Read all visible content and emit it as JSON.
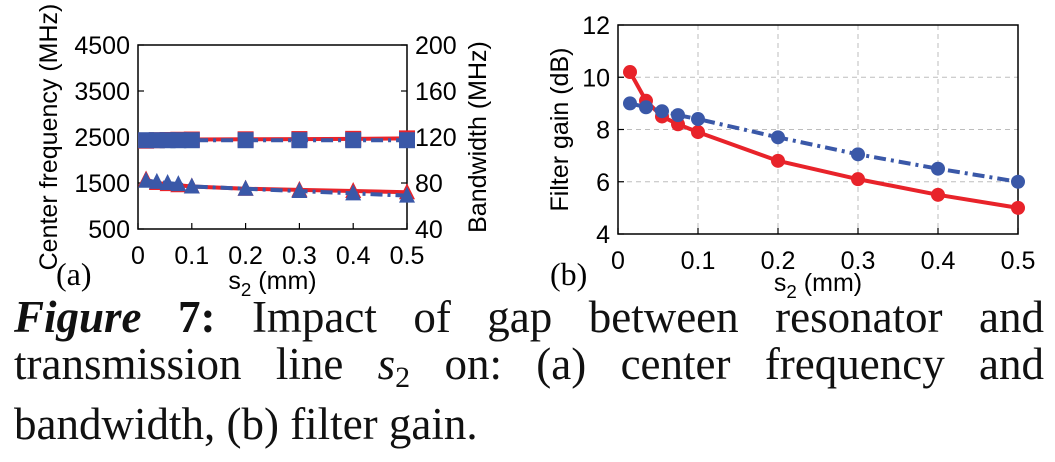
{
  "chart_data": [
    {
      "panel": "(a)",
      "type": "line",
      "xlabel_main": "s",
      "xlabel_sub": "2",
      "xlabel_unit": " (mm)",
      "xlim": [
        0,
        0.5
      ],
      "xticks": [
        "0",
        "0.1",
        "0.2",
        "0.3",
        "0.4",
        "0.5"
      ],
      "ylabel": "Center frequency (MHz)",
      "ylim": [
        500,
        4500
      ],
      "yticks": [
        "500",
        "1500",
        "2500",
        "3500",
        "4500"
      ],
      "y2label": "Bandwidth (MHz)",
      "y2lim": [
        40,
        200
      ],
      "y2ticks": [
        "40",
        "80",
        "120",
        "160",
        "200"
      ],
      "series": [
        {
          "name": "Center frequency (solid)",
          "axis": "left",
          "marker": "square",
          "color": "#e8232a",
          "dash": "solid",
          "x": [
            0.015,
            0.035,
            0.055,
            0.075,
            0.1,
            0.2,
            0.3,
            0.4,
            0.5
          ],
          "values": [
            2420,
            2430,
            2435,
            2440,
            2445,
            2450,
            2455,
            2460,
            2470
          ]
        },
        {
          "name": "Center frequency (dash-dot)",
          "axis": "left",
          "marker": "square",
          "color": "#3a58a8",
          "dash": "dashdot",
          "x": [
            0.015,
            0.035,
            0.055,
            0.075,
            0.1,
            0.2,
            0.3,
            0.4,
            0.5
          ],
          "values": [
            2430,
            2430,
            2430,
            2430,
            2430,
            2430,
            2430,
            2430,
            2430
          ]
        },
        {
          "name": "Bandwidth (solid)",
          "axis": "right",
          "marker": "triangle",
          "color": "#e8232a",
          "dash": "solid",
          "x": [
            0.015,
            0.035,
            0.055,
            0.075,
            0.1,
            0.2,
            0.3,
            0.4,
            0.5
          ],
          "values": [
            83,
            80,
            79,
            78,
            77,
            75,
            74,
            73,
            72
          ]
        },
        {
          "name": "Bandwidth (dash-dot)",
          "axis": "right",
          "marker": "triangle",
          "color": "#3a58a8",
          "dash": "dashdot",
          "x": [
            0.015,
            0.035,
            0.055,
            0.075,
            0.1,
            0.2,
            0.3,
            0.4,
            0.5
          ],
          "values": [
            82,
            81,
            80,
            79,
            77,
            75,
            73,
            71,
            69
          ]
        }
      ]
    },
    {
      "panel": "(b)",
      "type": "line",
      "xlabel_main": "s",
      "xlabel_sub": "2",
      "xlabel_unit": " (mm)",
      "xlim": [
        0,
        0.5
      ],
      "xticks": [
        "0",
        "0.1",
        "0.2",
        "0.3",
        "0.4",
        "0.5"
      ],
      "ylabel": "Filter gain (dB)",
      "ylim": [
        4,
        12
      ],
      "yticks": [
        "4",
        "6",
        "8",
        "10",
        "12"
      ],
      "grid": true,
      "series": [
        {
          "name": "Filter gain (solid)",
          "marker": "circle",
          "color": "#e8232a",
          "dash": "solid",
          "x": [
            0.015,
            0.035,
            0.055,
            0.075,
            0.1,
            0.2,
            0.3,
            0.4,
            0.5
          ],
          "values": [
            10.2,
            9.1,
            8.5,
            8.2,
            7.9,
            6.8,
            6.1,
            5.5,
            5.0
          ]
        },
        {
          "name": "Filter gain (dash-dot)",
          "marker": "circle",
          "color": "#3a58a8",
          "dash": "dashdot",
          "x": [
            0.015,
            0.035,
            0.055,
            0.075,
            0.1,
            0.2,
            0.3,
            0.4,
            0.5
          ],
          "values": [
            9.0,
            8.85,
            8.7,
            8.55,
            8.4,
            7.7,
            7.05,
            6.5,
            6.0
          ]
        }
      ]
    }
  ],
  "caption": {
    "figure_word": "Figure",
    "figure_number": " 7:",
    "text_1": " Impact of gap between resonator and transmission line ",
    "var_main": "s",
    "var_sub": "2",
    "text_2": " on: (a) center frequency and bandwidth, (b) filter gain."
  }
}
